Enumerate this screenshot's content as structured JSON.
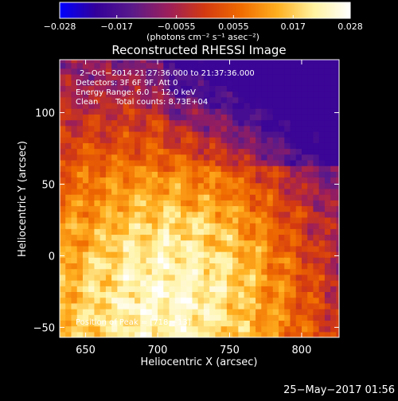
{
  "colorbar": {
    "tick_labels": [
      "−0.028",
      "−0.017",
      "−0.0055",
      "0.0055",
      "0.017",
      "0.028"
    ],
    "tick_values": [
      -0.028,
      -0.017,
      -0.0055,
      0.0055,
      0.017,
      0.028
    ],
    "range": [
      -0.028,
      0.028
    ],
    "units": "(photons cm⁻² s⁻¹ asec⁻²)",
    "colors": [
      "#0000ff",
      "#330099",
      "#5a1a8a",
      "#9c1e5a",
      "#d43a10",
      "#f06c00",
      "#ffb020",
      "#fff2a0",
      "#ffffff"
    ]
  },
  "title": "Reconstructed RHESSI Image",
  "annotations": {
    "line1": "2−Oct−2014 21:27:36.000 to 21:37:36.000",
    "line2": "Detectors: 3F 6F 9F, Att 0",
    "line3": "Energy Range: 6.0 − 12.0 keV",
    "line4_a": "Clean",
    "line4_b": "Total counts: 8.73E+04",
    "peak": "Position of Peak = [718,−13]"
  },
  "timestamp": "25−May−2017 01:56",
  "chart_data": {
    "type": "heatmap",
    "title": "Reconstructed RHESSI Image",
    "xlabel": "Heliocentric X (arcsec)",
    "ylabel": "Heliocentric Y (arcsec)",
    "xlim": [
      632,
      826
    ],
    "ylim": [
      -57,
      137
    ],
    "x_ticks": [
      650,
      700,
      750,
      800
    ],
    "y_ticks": [
      -50,
      0,
      50,
      100
    ],
    "x_tick_labels": [
      "650",
      "700",
      "750",
      "800"
    ],
    "y_tick_labels": [
      "−50",
      "0",
      "50",
      "100"
    ],
    "colorbar_range": [
      -0.028,
      0.028
    ],
    "peak_position": [
      718,
      -13
    ],
    "grid": false,
    "pixel_size_arcsec": 4,
    "description_of_values": "intensity field: high (yellow/white) toward lower-left near peak, decreasing to dark purple/black at upper-right"
  }
}
